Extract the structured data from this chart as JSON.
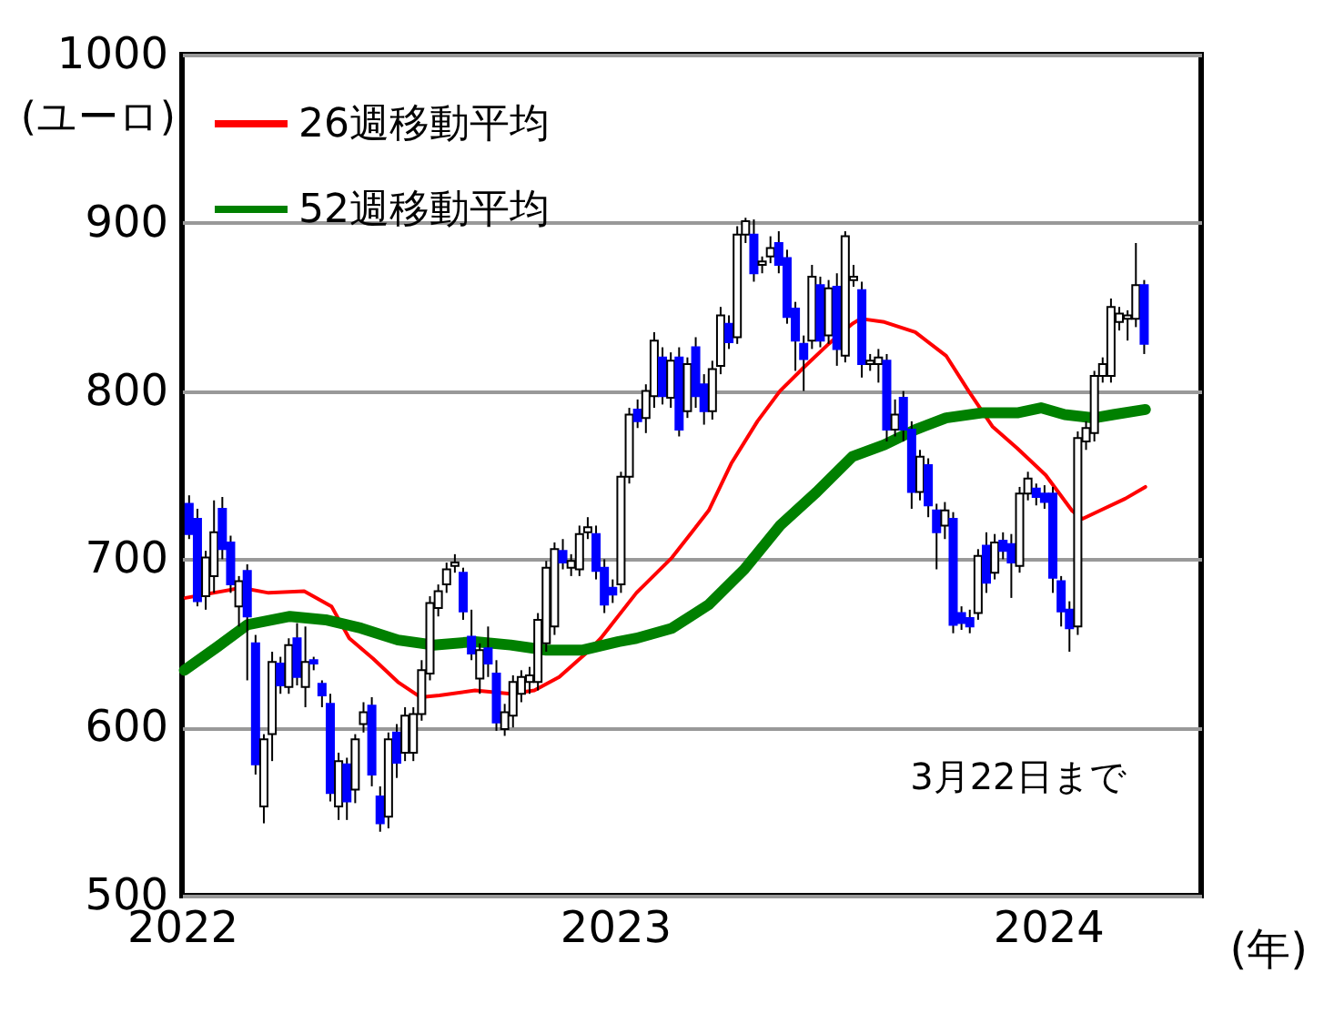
{
  "chart_data": {
    "type": "candlestick",
    "ylabel": "(ユーロ)",
    "xlabel": "(年)",
    "ylim": [
      500,
      1000
    ],
    "yticks": [
      500,
      600,
      700,
      800,
      900,
      1000
    ],
    "xlim": [
      "2022-01-01",
      "2024-05-09"
    ],
    "xticks": [
      "2022",
      "2023",
      "2024"
    ],
    "grid": "y",
    "legend": "top left",
    "annotations": [
      "3月22日まで"
    ],
    "x": [
      "2022-01-07",
      "2022-01-14",
      "2022-01-21",
      "2022-01-28",
      "2022-02-04",
      "2022-02-11",
      "2022-02-18",
      "2022-02-25",
      "2022-03-04",
      "2022-03-11",
      "2022-03-18",
      "2022-03-25",
      "2022-04-01",
      "2022-04-08",
      "2022-04-15",
      "2022-04-22",
      "2022-04-29",
      "2022-05-06",
      "2022-05-13",
      "2022-05-20",
      "2022-05-27",
      "2022-06-03",
      "2022-06-10",
      "2022-06-17",
      "2022-06-24",
      "2022-07-01",
      "2022-07-08",
      "2022-07-15",
      "2022-07-22",
      "2022-07-29",
      "2022-08-05",
      "2022-08-12",
      "2022-08-19",
      "2022-08-26",
      "2022-09-02",
      "2022-09-09",
      "2022-09-16",
      "2022-09-23",
      "2022-09-30",
      "2022-10-07",
      "2022-10-14",
      "2022-10-21",
      "2022-10-28",
      "2022-11-04",
      "2022-11-11",
      "2022-11-18",
      "2022-11-25",
      "2022-12-02",
      "2022-12-09",
      "2022-12-16",
      "2022-12-23",
      "2022-12-30",
      "2023-01-06",
      "2023-01-13",
      "2023-01-20",
      "2023-01-27",
      "2023-02-03",
      "2023-02-10",
      "2023-02-17",
      "2023-02-24",
      "2023-03-03",
      "2023-03-10",
      "2023-03-17",
      "2023-03-24",
      "2023-03-31",
      "2023-04-07",
      "2023-04-14",
      "2023-04-21",
      "2023-04-28",
      "2023-05-05",
      "2023-05-12",
      "2023-05-19",
      "2023-05-26",
      "2023-06-02",
      "2023-06-09",
      "2023-06-16",
      "2023-06-23",
      "2023-06-30",
      "2023-07-07",
      "2023-07-14",
      "2023-07-21",
      "2023-07-28",
      "2023-08-04",
      "2023-08-11",
      "2023-08-18",
      "2023-08-25",
      "2023-09-01",
      "2023-09-08",
      "2023-09-15",
      "2023-09-22",
      "2023-09-29",
      "2023-10-06",
      "2023-10-13",
      "2023-10-20",
      "2023-10-27",
      "2023-11-03",
      "2023-11-10",
      "2023-11-17",
      "2023-11-24",
      "2023-12-01",
      "2023-12-08",
      "2023-12-15",
      "2023-12-22",
      "2023-12-29",
      "2024-01-05",
      "2024-01-12",
      "2024-01-19",
      "2024-01-26",
      "2024-02-02",
      "2024-02-09",
      "2024-02-16",
      "2024-02-23",
      "2024-03-01",
      "2024-03-08",
      "2024-03-15",
      "2024-03-22"
    ],
    "ohlc": [
      [
        733,
        738,
        712,
        715
      ],
      [
        724,
        730,
        672,
        675
      ],
      [
        678,
        705,
        670,
        701
      ],
      [
        690,
        735,
        680,
        716
      ],
      [
        730,
        737,
        700,
        706
      ],
      [
        710,
        714,
        680,
        685
      ],
      [
        672,
        690,
        660,
        687
      ],
      [
        693,
        697,
        628,
        666
      ],
      [
        650,
        655,
        572,
        578
      ],
      [
        553,
        596,
        543,
        593
      ],
      [
        596,
        645,
        580,
        639
      ],
      [
        638,
        642,
        620,
        625
      ],
      [
        624,
        653,
        620,
        649
      ],
      [
        653,
        662,
        625,
        630
      ],
      [
        624,
        660,
        612,
        639
      ],
      [
        640,
        642,
        634,
        638
      ],
      [
        626,
        628,
        612,
        619
      ],
      [
        614,
        620,
        556,
        561
      ],
      [
        553,
        585,
        545,
        580
      ],
      [
        578,
        582,
        545,
        556
      ],
      [
        563,
        596,
        555,
        593
      ],
      [
        602,
        615,
        597,
        609
      ],
      [
        613,
        618,
        565,
        572
      ],
      [
        559,
        565,
        538,
        543
      ],
      [
        547,
        597,
        540,
        593
      ],
      [
        597,
        602,
        570,
        579
      ],
      [
        585,
        612,
        580,
        607
      ],
      [
        585,
        612,
        580,
        608
      ],
      [
        608,
        640,
        604,
        634
      ],
      [
        632,
        678,
        628,
        674
      ],
      [
        671,
        685,
        666,
        681
      ],
      [
        685,
        698,
        680,
        694
      ],
      [
        696,
        703,
        692,
        698
      ],
      [
        692,
        695,
        664,
        669
      ],
      [
        654,
        670,
        640,
        644
      ],
      [
        629,
        650,
        620,
        646
      ],
      [
        647,
        660,
        630,
        638
      ],
      [
        632,
        640,
        598,
        603
      ],
      [
        599,
        614,
        595,
        609
      ],
      [
        607,
        631,
        600,
        627
      ],
      [
        620,
        634,
        615,
        630
      ],
      [
        627,
        636,
        620,
        631
      ],
      [
        627,
        668,
        622,
        664
      ],
      [
        650,
        699,
        645,
        695
      ],
      [
        660,
        710,
        655,
        706
      ],
      [
        705,
        712,
        694,
        698
      ],
      [
        695,
        703,
        690,
        699
      ],
      [
        694,
        720,
        690,
        715
      ],
      [
        716,
        725,
        712,
        719
      ],
      [
        715,
        720,
        688,
        693
      ],
      [
        695,
        700,
        668,
        673
      ],
      [
        683,
        688,
        674,
        679
      ],
      [
        685,
        752,
        680,
        749
      ],
      [
        749,
        790,
        745,
        786
      ],
      [
        789,
        795,
        778,
        782
      ],
      [
        784,
        804,
        775,
        800
      ],
      [
        797,
        835,
        790,
        830
      ],
      [
        820,
        826,
        792,
        797
      ],
      [
        796,
        823,
        790,
        818
      ],
      [
        820,
        826,
        773,
        777
      ],
      [
        788,
        820,
        784,
        816
      ],
      [
        826,
        832,
        790,
        797
      ],
      [
        804,
        810,
        780,
        788
      ],
      [
        788,
        818,
        783,
        813
      ],
      [
        815,
        850,
        810,
        845
      ],
      [
        840,
        845,
        825,
        829
      ],
      [
        832,
        898,
        828,
        893
      ],
      [
        893,
        903,
        888,
        901
      ],
      [
        893,
        902,
        865,
        870
      ],
      [
        875,
        880,
        870,
        877
      ],
      [
        880,
        892,
        876,
        885
      ],
      [
        888,
        895,
        870,
        875
      ],
      [
        879,
        884,
        840,
        844
      ],
      [
        849,
        853,
        812,
        830
      ],
      [
        828,
        833,
        800,
        819
      ],
      [
        830,
        875,
        825,
        868
      ],
      [
        863,
        868,
        826,
        830
      ],
      [
        833,
        866,
        828,
        861
      ],
      [
        862,
        870,
        815,
        825
      ],
      [
        821,
        895,
        817,
        892
      ],
      [
        866,
        875,
        862,
        868
      ],
      [
        860,
        865,
        808,
        816
      ],
      [
        816,
        822,
        812,
        818
      ],
      [
        816,
        825,
        805,
        820
      ],
      [
        818,
        822,
        770,
        777
      ],
      [
        777,
        795,
        773,
        786
      ],
      [
        796,
        800,
        770,
        777
      ],
      [
        777,
        782,
        730,
        740
      ],
      [
        740,
        765,
        735,
        761
      ],
      [
        756,
        760,
        725,
        732
      ],
      [
        729,
        733,
        694,
        716
      ],
      [
        720,
        734,
        712,
        729
      ],
      [
        724,
        728,
        656,
        661
      ],
      [
        668,
        672,
        658,
        662
      ],
      [
        665,
        670,
        656,
        660
      ],
      [
        668,
        706,
        664,
        702
      ],
      [
        708,
        716,
        680,
        686
      ],
      [
        692,
        715,
        688,
        710
      ],
      [
        711,
        716,
        700,
        705
      ],
      [
        709,
        715,
        677,
        698
      ],
      [
        696,
        743,
        692,
        739
      ],
      [
        739,
        752,
        735,
        748
      ],
      [
        742,
        745,
        732,
        737
      ],
      [
        739,
        744,
        730,
        734
      ],
      [
        739,
        743,
        680,
        689
      ],
      [
        687,
        690,
        660,
        669
      ],
      [
        670,
        675,
        645,
        659
      ],
      [
        660,
        776,
        655,
        772
      ],
      [
        770,
        782,
        765,
        778
      ],
      [
        775,
        812,
        770,
        809
      ],
      [
        809,
        820,
        805,
        816
      ],
      [
        809,
        855,
        805,
        850
      ],
      [
        841,
        850,
        836,
        846
      ],
      [
        843,
        848,
        830,
        845
      ],
      [
        843,
        888,
        838,
        863
      ],
      [
        863,
        866,
        822,
        828
      ]
    ],
    "series": [
      {
        "name": "26週移動平均",
        "type": "line",
        "color": "#ff0000",
        "x": [
          "2022-01-04",
          "2022-02-20",
          "2022-03-15",
          "2022-04-14",
          "2022-05-07",
          "2022-05-22",
          "2022-06-11",
          "2022-07-02",
          "2022-07-21",
          "2022-08-06",
          "2022-09-05",
          "2022-10-05",
          "2022-10-25",
          "2022-11-15",
          "2022-12-09",
          "2022-12-20",
          "2023-01-19",
          "2023-02-18",
          "2023-03-21",
          "2023-04-09",
          "2023-05-01",
          "2023-05-20",
          "2023-06-09",
          "2023-06-30",
          "2023-07-20",
          "2023-07-27",
          "2023-08-16",
          "2023-09-11",
          "2023-10-07",
          "2023-10-26",
          "2023-11-15",
          "2023-12-06",
          "2023-12-30",
          "2024-01-21",
          "2024-01-30",
          "2024-02-14",
          "2024-03-06",
          "2024-03-23"
        ],
        "values": [
          677,
          683,
          680,
          681,
          672,
          653,
          641,
          627,
          618,
          619,
          622,
          620,
          622,
          630,
          645,
          653,
          680,
          701,
          729,
          757,
          782,
          800,
          814,
          828,
          840,
          843,
          841,
          835,
          821,
          800,
          779,
          766,
          750,
          729,
          724,
          729,
          736,
          743
        ]
      },
      {
        "name": "52週移動平均",
        "type": "line",
        "color": "#008000",
        "x": [
          "2022-01-03",
          "2022-01-31",
          "2022-02-25",
          "2022-04-02",
          "2022-05-02",
          "2022-06-01",
          "2022-07-02",
          "2022-08-01",
          "2022-09-05",
          "2022-10-05",
          "2022-11-04",
          "2022-12-05",
          "2023-01-04",
          "2023-01-19",
          "2023-02-18",
          "2023-03-21",
          "2023-04-20",
          "2023-05-20",
          "2023-06-20",
          "2023-07-20",
          "2023-08-16",
          "2023-09-11",
          "2023-10-07",
          "2023-11-06",
          "2023-12-06",
          "2023-12-26",
          "2024-01-15",
          "2024-02-09",
          "2024-02-25",
          "2024-03-23"
        ],
        "values": [
          634,
          648,
          661,
          666,
          664,
          659,
          652,
          649,
          651,
          649,
          646,
          646,
          651,
          653,
          659,
          673,
          694,
          720,
          740,
          761,
          768,
          777,
          784,
          787,
          787,
          790,
          786,
          784,
          786,
          789
        ]
      }
    ]
  }
}
